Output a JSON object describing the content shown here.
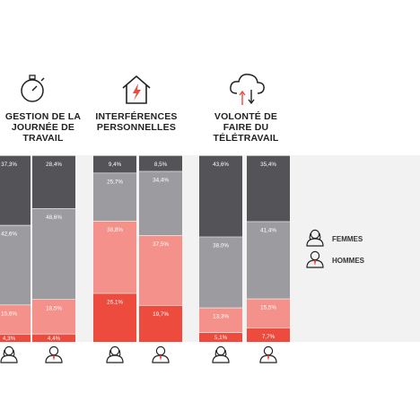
{
  "chart_data": {
    "type": "bar",
    "stacked": true,
    "groups": [
      {
        "title": "GESTION DE LA\nJOURNÉE DE\nTRAVAIL",
        "icon": "stopwatch-icon",
        "bars": [
          {
            "gender": "femmes",
            "labels": [
              "4,3%",
              "15,6%",
              "42,6%",
              "37,3%"
            ],
            "values": [
              4.3,
              15.6,
              42.6,
              37.3
            ]
          },
          {
            "gender": "hommes",
            "labels": [
              "4,4%",
              "18,5%",
              "48,6%",
              "28,4%"
            ],
            "values": [
              4.4,
              18.5,
              48.6,
              28.4
            ]
          }
        ]
      },
      {
        "title": "INTERFÉRENCES\nPERSONNELLES",
        "icon": "house-lightning-icon",
        "bars": [
          {
            "gender": "femmes",
            "labels": [
              "26,1%",
              "38,8%",
              "25,7%",
              "9,4%"
            ],
            "values": [
              26.1,
              38.8,
              25.7,
              9.4
            ]
          },
          {
            "gender": "hommes",
            "labels": [
              "19,7%",
              "37,5%",
              "34,4%",
              "8,5%"
            ],
            "values": [
              19.7,
              37.5,
              34.4,
              8.5
            ]
          }
        ]
      },
      {
        "title": "VOLONTÉ DE\nFAIRE DU\nTÉLÉTRAVAIL",
        "icon": "cloud-sync-icon",
        "bars": [
          {
            "gender": "femmes",
            "labels": [
              "5,1%",
              "13,3%",
              "38,0%",
              "43,6%"
            ],
            "values": [
              5.1,
              13.3,
              38.0,
              43.6
            ]
          },
          {
            "gender": "hommes",
            "labels": [
              "7,7%",
              "15,5%",
              "41,4%",
              "35,4%"
            ],
            "values": [
              7.7,
              15.5,
              41.4,
              35.4
            ]
          }
        ]
      }
    ],
    "segment_colors": [
      "#ee4b3f",
      "#f4918a",
      "#9c9b9f",
      "#545357"
    ],
    "legend": [
      {
        "key": "femmes",
        "label": "FEMMES",
        "icon": "woman-icon"
      },
      {
        "key": "hommes",
        "label": "HOMMES",
        "icon": "man-icon"
      }
    ]
  }
}
